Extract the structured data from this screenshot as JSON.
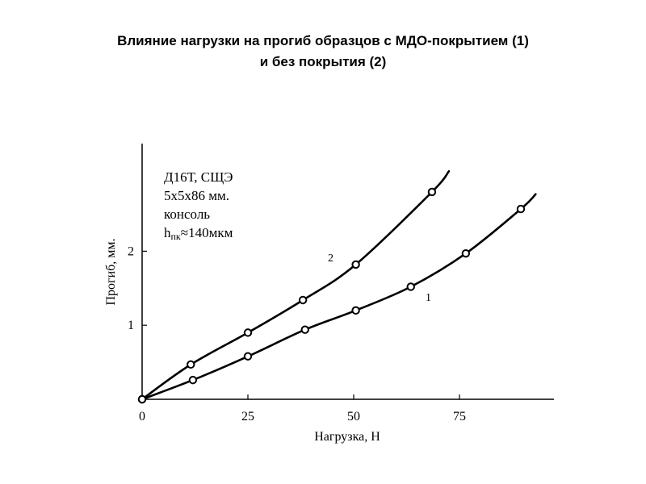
{
  "title_lines": [
    "Влияние нагрузки на прогиб образцов с МДО-покрытием (1)",
    "и без покрытия (2)"
  ],
  "chart_data": {
    "type": "line",
    "title": "Влияние нагрузки на прогиб образцов с МДО-покрытием (1) и без покрытия (2)",
    "xlabel": "Нагрузка, Н",
    "ylabel": "Прогиб, мм.",
    "xlim": [
      0,
      95
    ],
    "ylim": [
      0,
      3.4
    ],
    "x_ticks": [
      0,
      25,
      50,
      75
    ],
    "y_ticks": [
      1,
      2
    ],
    "x_tick_labels": [
      "0",
      "25",
      "50",
      "75"
    ],
    "y_tick_labels": [
      "1",
      "2"
    ],
    "grid": false,
    "annotation": {
      "lines": [
        "Д16Т, СЩЭ",
        "5x5x86 мм.",
        "консоль"
      ],
      "h_symbol": "h",
      "h_subscript": "пк",
      "h_value": "≈140мкм"
    },
    "series": [
      {
        "name": "1",
        "points_x": [
          0,
          12,
          25,
          38.5,
          50.5,
          63.5,
          76.5,
          89.5
        ],
        "points_y": [
          0,
          0.26,
          0.58,
          0.94,
          1.2,
          1.52,
          1.97,
          2.57
        ],
        "curve_x": [
          0,
          12,
          25,
          38.5,
          50.5,
          63.5,
          76.5,
          89.5,
          93
        ],
        "curve_y": [
          0,
          0.26,
          0.58,
          0.94,
          1.2,
          1.52,
          1.97,
          2.57,
          2.77
        ]
      },
      {
        "name": "2",
        "points_x": [
          0,
          11.5,
          25,
          38,
          50.5,
          68.5
        ],
        "points_y": [
          0,
          0.47,
          0.9,
          1.34,
          1.82,
          2.8
        ],
        "curve_x": [
          0,
          11.5,
          25,
          38,
          50.5,
          68.5,
          72.5
        ],
        "curve_y": [
          0,
          0.47,
          0.9,
          1.34,
          1.82,
          2.8,
          3.08
        ]
      }
    ]
  }
}
